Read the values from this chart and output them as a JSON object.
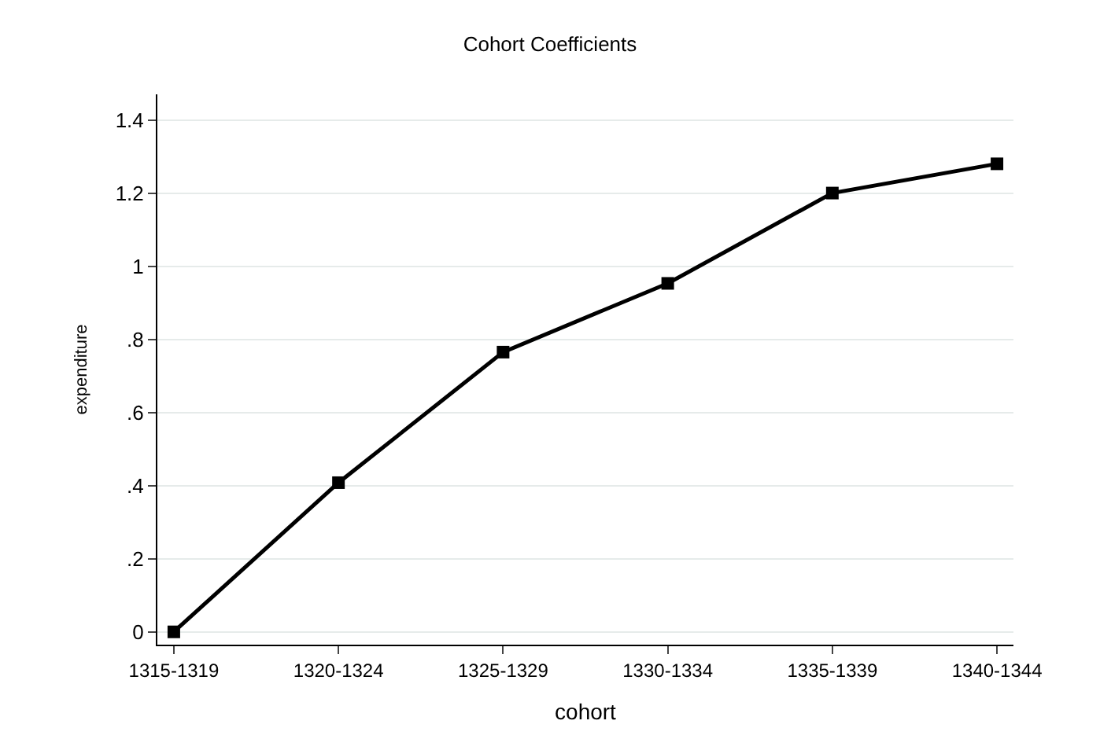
{
  "chart_data": {
    "type": "line",
    "title": "Cohort Coefficients",
    "xlabel": "cohort",
    "ylabel": "expenditure",
    "categories": [
      "1315-1319",
      "1320-1324",
      "1325-1329",
      "1330-1334",
      "1335-1339",
      "1340-1344"
    ],
    "series": [
      {
        "color": "#000000",
        "values": [
          0,
          0.408,
          0.765,
          0.953,
          1.2,
          1.28
        ]
      }
    ],
    "ylim": [
      -0.035,
      1.47
    ],
    "yticks": [
      0,
      {
        "value": 0.2,
        "label": ".2"
      },
      {
        "value": 0.4,
        "label": ".4"
      },
      {
        "value": 0.6,
        "label": ".6"
      },
      {
        "value": 0.8,
        "label": ".8"
      },
      1,
      1.2,
      1.4
    ],
    "grid": "y",
    "legend": false,
    "marker": "square",
    "line_style": "solid"
  }
}
